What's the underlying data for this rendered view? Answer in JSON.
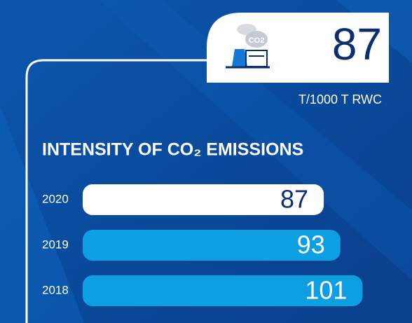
{
  "chart_data": {
    "type": "bar",
    "orientation": "horizontal",
    "highlight_value": 87,
    "unit": "T/1000 T RWC",
    "title": "INTENSITY OF CO₂ EMISSIONS",
    "categories": [
      "2020",
      "2019",
      "2018"
    ],
    "values": [
      87,
      93,
      101
    ],
    "colors": [
      "#ffffff",
      "#0d9fe2",
      "#0d9fe2"
    ],
    "label_colors": [
      "#0b2f6e",
      "#ffffff",
      "#ffffff"
    ]
  }
}
